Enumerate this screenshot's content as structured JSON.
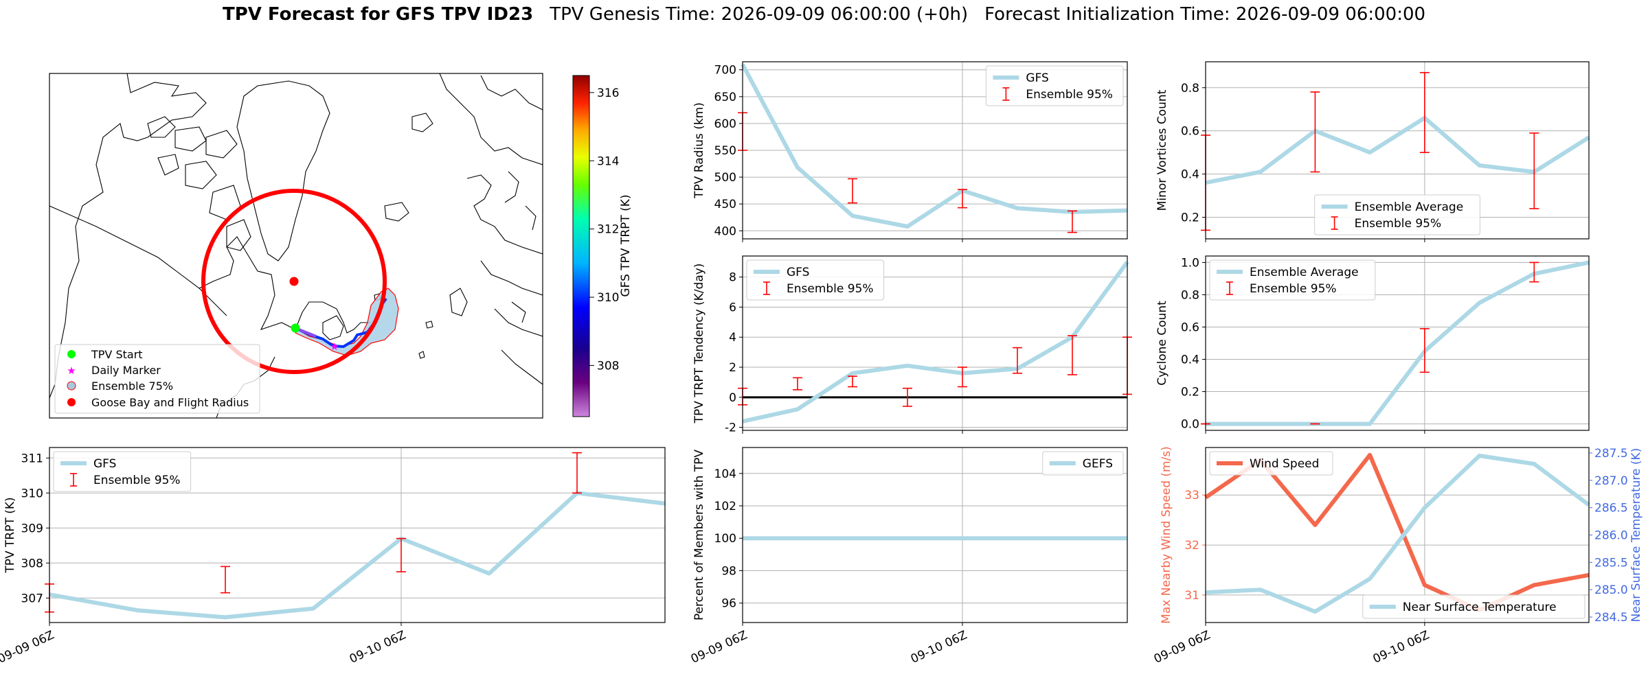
{
  "title": {
    "bold": "TPV Forecast for GFS TPV ID23",
    "genesis": "TPV Genesis Time: 2026-09-09 06:00:00 (+0h)",
    "init": "Forecast Initialization Time: 2026-09-09 06:00:00"
  },
  "x_time_ticks": [
    "09-09 06Z",
    "09-10 06Z"
  ],
  "map": {
    "colorbar_label": "GFS TPV TRPT (K)",
    "colorbar_ticks": [
      308,
      310,
      312,
      314,
      316
    ],
    "colorbar_range": [
      306.5,
      316.5
    ],
    "legend": [
      {
        "label": "TPV Start",
        "color": "#00ff00",
        "marker": "circle"
      },
      {
        "label": "Daily Marker",
        "color": "#ff00ff",
        "marker": "star"
      },
      {
        "label": "Ensemble 75%",
        "color": "#a8c8e0",
        "marker": "patch"
      },
      {
        "label": "Goose Bay and Flight Radius",
        "color": "#ff0000",
        "marker": "circle"
      }
    ],
    "colors": {
      "radius_circle": "#ff0000",
      "ensemble_fill": "#a8d0e6",
      "track": "#0033ff"
    }
  },
  "colors": {
    "gfs": "#add8e6",
    "ensemble": "#ff0000",
    "wind": "#f4684c",
    "temp_axis": "#4169e1"
  },
  "chart_data": [
    {
      "id": "radius",
      "type": "line",
      "title": "",
      "xlabel": "",
      "ylabel": "TPV Radius (km)",
      "xlim": [
        0,
        7
      ],
      "ylim": [
        385,
        715
      ],
      "yticks": [
        400,
        450,
        500,
        550,
        600,
        650,
        700
      ],
      "legend": "top-right",
      "series": [
        {
          "name": "GFS",
          "x": [
            0,
            1,
            2,
            3,
            4,
            5,
            6,
            7
          ],
          "values": [
            710,
            518,
            428,
            408,
            475,
            442,
            435,
            438
          ]
        }
      ],
      "errorbars": {
        "name": "Ensemble 95%",
        "x": [
          0,
          2,
          4,
          6
        ],
        "low": [
          550,
          452,
          443,
          397
        ],
        "high": [
          620,
          497,
          477,
          437
        ]
      }
    },
    {
      "id": "minor",
      "type": "line",
      "title": "",
      "xlabel": "",
      "ylabel": "Minor Vortices Count",
      "xlim": [
        0,
        7
      ],
      "ylim": [
        0.1,
        0.92
      ],
      "yticks": [
        0.2,
        0.4,
        0.6,
        0.8
      ],
      "legend": "bottom-center",
      "series": [
        {
          "name": "Ensemble Average",
          "x": [
            0,
            1,
            2,
            3,
            4,
            5,
            6,
            7
          ],
          "values": [
            0.36,
            0.41,
            0.6,
            0.5,
            0.66,
            0.44,
            0.41,
            0.57
          ]
        }
      ],
      "errorbars": {
        "name": "Ensemble 95%",
        "x": [
          0,
          2,
          4,
          6
        ],
        "low": [
          0.14,
          0.41,
          0.5,
          0.24
        ],
        "high": [
          0.58,
          0.78,
          0.87,
          0.59
        ]
      }
    },
    {
      "id": "tendency",
      "type": "line",
      "title": "",
      "xlabel": "",
      "ylabel": "TPV TRPT Tendency (K/day)",
      "xlim": [
        0,
        7
      ],
      "ylim": [
        -2.2,
        9.4
      ],
      "yticks": [
        -2,
        0,
        2,
        4,
        6,
        8
      ],
      "legend": "top-left",
      "zero_line": true,
      "series": [
        {
          "name": "GFS",
          "x": [
            0,
            1,
            2,
            3,
            4,
            5,
            6,
            7
          ],
          "values": [
            -1.6,
            -0.8,
            1.6,
            2.1,
            1.6,
            1.9,
            4.0,
            9.0
          ]
        }
      ],
      "errorbars": {
        "name": "Ensemble 95%",
        "x": [
          0,
          1,
          2,
          3,
          4,
          5,
          6,
          7
        ],
        "low": [
          -0.5,
          0.5,
          0.7,
          -0.6,
          0.7,
          1.6,
          1.5,
          0.2
        ],
        "high": [
          0.6,
          1.3,
          1.4,
          0.6,
          2.0,
          3.3,
          4.1,
          4.0
        ]
      }
    },
    {
      "id": "cyclone",
      "type": "line",
      "title": "",
      "xlabel": "",
      "ylabel": "Cyclone Count",
      "xlim": [
        0,
        7
      ],
      "ylim": [
        -0.04,
        1.04
      ],
      "yticks": [
        0.0,
        0.2,
        0.4,
        0.6,
        0.8,
        1.0
      ],
      "legend": "top-left",
      "series": [
        {
          "name": "Ensemble Average",
          "x": [
            0,
            1,
            2,
            3,
            4,
            5,
            6,
            7
          ],
          "values": [
            0,
            0,
            0,
            0,
            0.45,
            0.75,
            0.93,
            1.0
          ]
        }
      ],
      "errorbars": {
        "name": "Ensemble 95%",
        "x": [
          0,
          2,
          4,
          6
        ],
        "low": [
          0,
          0,
          0.32,
          0.88
        ],
        "high": [
          0,
          0,
          0.59,
          1.0
        ]
      }
    },
    {
      "id": "trpt",
      "type": "line",
      "title": "",
      "xlabel": "",
      "ylabel": "TPV TRPT (K)",
      "xlim": [
        0,
        7
      ],
      "ylim": [
        306.3,
        311.3
      ],
      "yticks": [
        307,
        308,
        309,
        310,
        311
      ],
      "legend": "top-left",
      "series": [
        {
          "name": "GFS",
          "x": [
            0,
            1,
            2,
            3,
            4,
            5,
            6,
            7
          ],
          "values": [
            307.1,
            306.65,
            306.45,
            306.7,
            308.7,
            307.7,
            310.0,
            309.7
          ]
        }
      ],
      "errorbars": {
        "name": "Ensemble 95%",
        "x": [
          0,
          2,
          4,
          6
        ],
        "low": [
          306.6,
          307.15,
          307.75,
          310.0
        ],
        "high": [
          307.4,
          307.9,
          308.7,
          311.15
        ]
      }
    },
    {
      "id": "percent",
      "type": "line",
      "title": "",
      "xlabel": "",
      "ylabel": "Percent of Members with TPV",
      "xlim": [
        0,
        7
      ],
      "ylim": [
        94.8,
        105.6
      ],
      "yticks": [
        96,
        98,
        100,
        102,
        104
      ],
      "legend": "top-right",
      "series": [
        {
          "name": "GEFS",
          "x": [
            0,
            7
          ],
          "values": [
            100,
            100
          ]
        }
      ]
    },
    {
      "id": "wind",
      "type": "line",
      "title": "",
      "xlabel": "",
      "ylabel": "Max Nearby Wind Speed (m/s)",
      "y2label": "Near Surface Temperature (K)",
      "xlim": [
        0,
        7
      ],
      "ylim": [
        30.45,
        33.95
      ],
      "yticks": [
        31,
        32,
        33
      ],
      "y2lim": [
        284.4,
        287.6
      ],
      "y2ticks": [
        284.5,
        285.0,
        285.5,
        286.0,
        286.5,
        287.0,
        287.5
      ],
      "legend": "top-left / bottom-right",
      "series": [
        {
          "name": "Wind Speed",
          "axis": "left",
          "x": [
            0,
            1,
            2,
            3,
            4,
            5,
            6,
            7
          ],
          "values": [
            32.95,
            33.7,
            32.4,
            33.8,
            31.2,
            30.7,
            31.2,
            31.4
          ]
        },
        {
          "name": "Near Surface Temperature",
          "axis": "right",
          "x": [
            0,
            1,
            2,
            3,
            4,
            5,
            6,
            7
          ],
          "values": [
            284.95,
            285.0,
            284.6,
            285.2,
            286.5,
            287.45,
            287.3,
            286.55
          ]
        }
      ]
    }
  ]
}
